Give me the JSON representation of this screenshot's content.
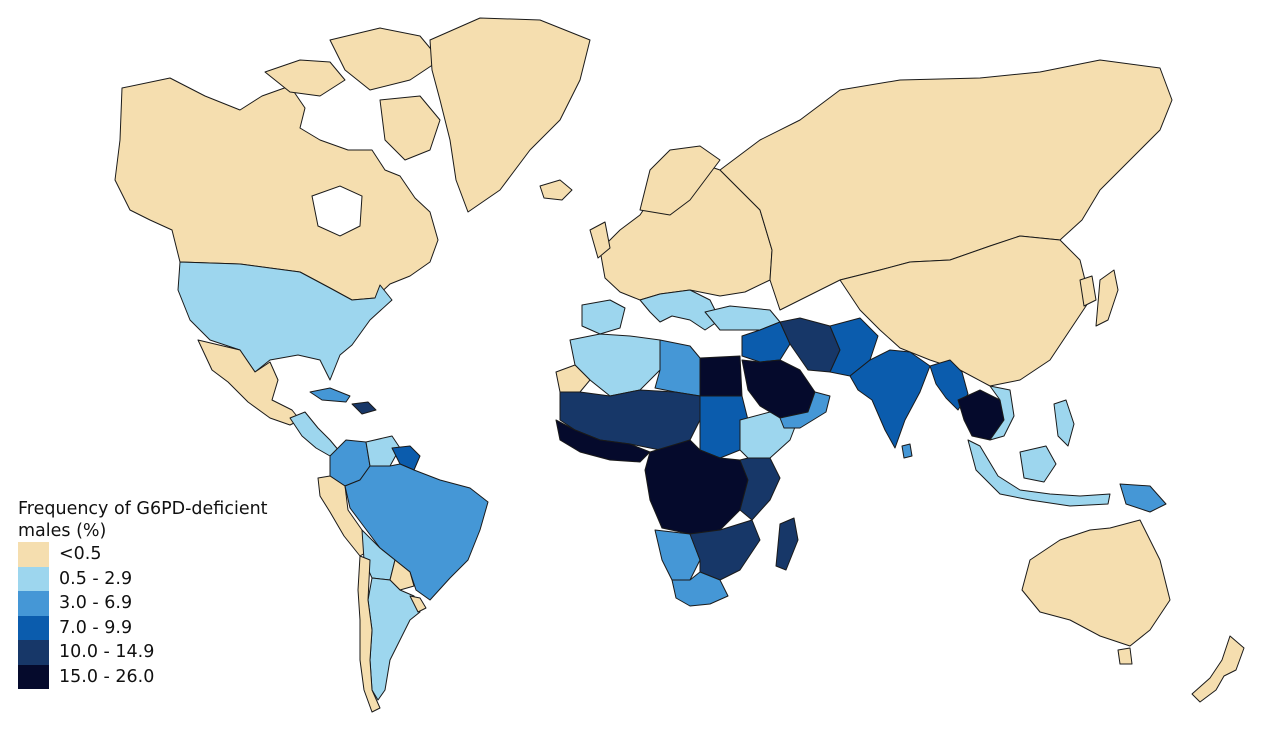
{
  "legend": {
    "title": "Frequency of G6PD-deficient males (%)",
    "classes": [
      {
        "label": "<0.5",
        "color": "#f5deaf"
      },
      {
        "label": "0.5 - 2.9",
        "color": "#9dd6ee"
      },
      {
        "label": "3.0 - 6.9",
        "color": "#4597d6"
      },
      {
        "label": "7.0 - 9.9",
        "color": "#0b5cad"
      },
      {
        "label": "10.0 - 14.9",
        "color": "#173768"
      },
      {
        "label": "15.0 - 26.0",
        "color": "#050a2c"
      }
    ]
  },
  "regions": [
    {
      "name": "North America (Canada, Alaska)",
      "class": 0
    },
    {
      "name": "Greenland",
      "class": 0
    },
    {
      "name": "United States",
      "class": 1
    },
    {
      "name": "Mexico",
      "class": 0
    },
    {
      "name": "Central America",
      "class": 1
    },
    {
      "name": "Cuba",
      "class": 2
    },
    {
      "name": "Hispaniola",
      "class": 4
    },
    {
      "name": "Colombia",
      "class": 2
    },
    {
      "name": "Venezuela",
      "class": 1
    },
    {
      "name": "Guianas",
      "class": 3
    },
    {
      "name": "Ecuador & Peru",
      "class": 0
    },
    {
      "name": "Brazil",
      "class": 2
    },
    {
      "name": "Bolivia",
      "class": 1
    },
    {
      "name": "Paraguay",
      "class": 0
    },
    {
      "name": "Argentina",
      "class": 1
    },
    {
      "name": "Chile",
      "class": 0
    },
    {
      "name": "Uruguay",
      "class": 0
    },
    {
      "name": "Iceland",
      "class": 0
    },
    {
      "name": "Europe",
      "class": 0
    },
    {
      "name": "Iberia",
      "class": 1
    },
    {
      "name": "Italy & Balkans",
      "class": 1
    },
    {
      "name": "Turkey",
      "class": 1
    },
    {
      "name": "Russia & Central Asia",
      "class": 0
    },
    {
      "name": "China & Mongolia",
      "class": 0
    },
    {
      "name": "Japan",
      "class": 0
    },
    {
      "name": "Korea",
      "class": 0
    },
    {
      "name": "Morocco & Algeria",
      "class": 1
    },
    {
      "name": "Western Sahara",
      "class": 0
    },
    {
      "name": "Libya",
      "class": 2
    },
    {
      "name": "Egypt",
      "class": 5
    },
    {
      "name": "Sudan",
      "class": 3
    },
    {
      "name": "Sahel",
      "class": 4
    },
    {
      "name": "West Africa coast",
      "class": 5
    },
    {
      "name": "Ethiopia & Horn",
      "class": 1
    },
    {
      "name": "Central Africa",
      "class": 5
    },
    {
      "name": "East Africa",
      "class": 4
    },
    {
      "name": "Angola & Namibia",
      "class": 2
    },
    {
      "name": "Mozambique & Zimbabwe",
      "class": 4
    },
    {
      "name": "South Africa",
      "class": 2
    },
    {
      "name": "Madagascar",
      "class": 4
    },
    {
      "name": "Levant & Iraq",
      "class": 3
    },
    {
      "name": "Saudi Arabia",
      "class": 5
    },
    {
      "name": "Yemen & Oman",
      "class": 2
    },
    {
      "name": "Iran",
      "class": 4
    },
    {
      "name": "Afghanistan & Pakistan",
      "class": 3
    },
    {
      "name": "India",
      "class": 3
    },
    {
      "name": "Myanmar & Bangladesh",
      "class": 3
    },
    {
      "name": "Thailand",
      "class": 5
    },
    {
      "name": "Vietnam",
      "class": 1
    },
    {
      "name": "Malaysia & Indonesia",
      "class": 1
    },
    {
      "name": "Borneo",
      "class": 1
    },
    {
      "name": "New Guinea",
      "class": 2
    },
    {
      "name": "Philippines",
      "class": 1
    },
    {
      "name": "Australia",
      "class": 0
    },
    {
      "name": "New Zealand",
      "class": 0
    },
    {
      "name": "Sri Lanka",
      "class": 2
    }
  ]
}
